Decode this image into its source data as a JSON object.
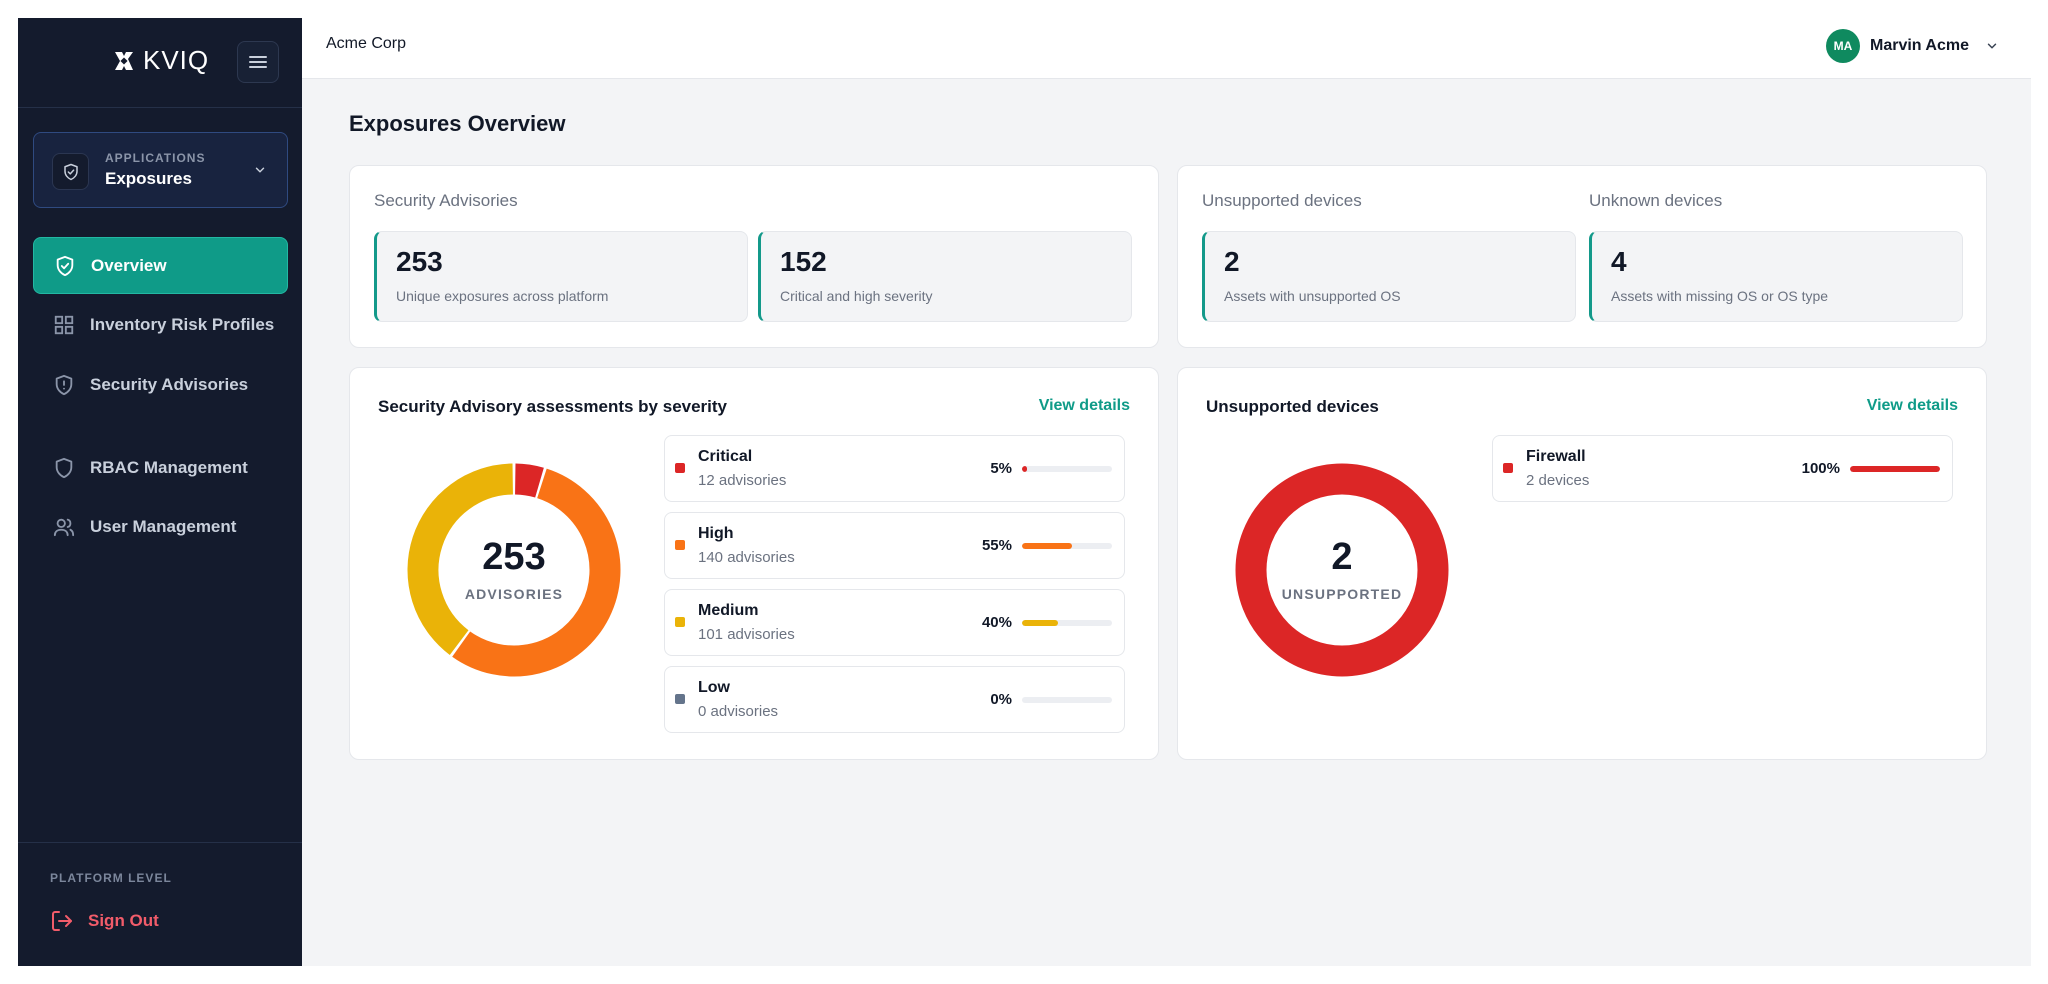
{
  "brand": {
    "name": "KVIQ"
  },
  "app_switcher": {
    "kicker": "APPLICATIONS",
    "name": "Exposures"
  },
  "nav": [
    {
      "label": "Overview",
      "icon": "shield-check-icon",
      "active": true
    },
    {
      "label": "Inventory Risk Profiles",
      "icon": "grid-icon",
      "active": false
    },
    {
      "label": "Security Advisories",
      "icon": "shield-alert-icon",
      "active": false
    },
    {
      "label": "RBAC Management",
      "icon": "shield-icon",
      "active": false
    },
    {
      "label": "User Management",
      "icon": "users-icon",
      "active": false
    }
  ],
  "sidebar_footer": {
    "label": "PLATFORM LEVEL",
    "signout": "Sign Out"
  },
  "topbar": {
    "org": "Acme Corp",
    "user_initials": "MA",
    "user_name": "Marvin Acme"
  },
  "page": {
    "title": "Exposures Overview"
  },
  "summary_advisories": {
    "label": "Security Advisories",
    "stats": [
      {
        "value": "253",
        "desc": "Unique exposures across platform"
      },
      {
        "value": "152",
        "desc": "Critical and high severity"
      }
    ]
  },
  "summary_devices": {
    "unsupported": {
      "label": "Unsupported devices",
      "value": "2",
      "desc": "Assets with unsupported OS"
    },
    "unknown": {
      "label": "Unknown devices",
      "value": "4",
      "desc": "Assets with missing OS or OS type"
    }
  },
  "severity_panel": {
    "title": "Security Advisory assessments by severity",
    "link": "View details",
    "total": "253",
    "caption": "ADVISORIES",
    "rows": [
      {
        "name": "Critical",
        "sub": "12 advisories",
        "pct_label": "5%",
        "count": 12,
        "fraction": 0.05,
        "color": "#dc2626"
      },
      {
        "name": "High",
        "sub": "140 advisories",
        "pct_label": "55%",
        "count": 140,
        "fraction": 0.55,
        "color": "#f97316"
      },
      {
        "name": "Medium",
        "sub": "101 advisories",
        "pct_label": "40%",
        "count": 101,
        "fraction": 0.4,
        "color": "#eab308"
      },
      {
        "name": "Low",
        "sub": "0 advisories",
        "pct_label": "0%",
        "count": 0,
        "fraction": 0.0,
        "color": "#64748b"
      }
    ]
  },
  "unsupported_panel": {
    "title": "Unsupported devices",
    "link": "View details",
    "total": "2",
    "caption": "UNSUPPORTED",
    "rows": [
      {
        "name": "Firewall",
        "sub": "2 devices",
        "pct_label": "100%",
        "count": 2,
        "fraction": 1.0,
        "color": "#dc2626"
      }
    ]
  },
  "colors": {
    "accent": "#0f9b88",
    "sidebar": "#141b2d",
    "danger": "#f25c6a"
  }
}
